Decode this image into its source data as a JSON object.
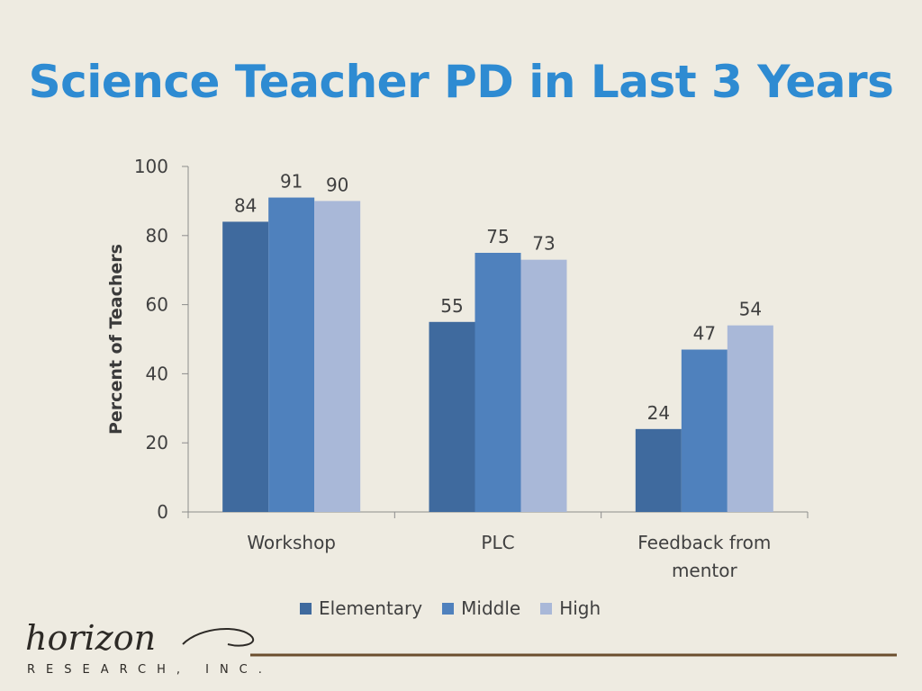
{
  "title": "Science Teacher PD in Last 3 Years",
  "colors": {
    "title": "#2e8bd2",
    "background": "#eeebe1",
    "axis": "#8c8c8c",
    "logo_line": "#6b4e2e"
  },
  "logo": {
    "wordmark": "horizon",
    "subtitle": "RESEARCH, INC."
  },
  "chart_data": {
    "type": "bar",
    "title": "",
    "ylabel": "Percent of Teachers",
    "xlabel": "",
    "ylim": [
      0,
      100
    ],
    "yticks": [
      0,
      20,
      40,
      60,
      80,
      100
    ],
    "grid": false,
    "legend_position": "bottom",
    "categories": [
      "Workshop",
      "PLC",
      "Feedback from mentor"
    ],
    "category_lines": [
      [
        "Workshop"
      ],
      [
        "PLC"
      ],
      [
        "Feedback from",
        "mentor"
      ]
    ],
    "series": [
      {
        "name": "Elementary",
        "values": [
          84,
          55,
          24
        ],
        "color": "#3f6a9e"
      },
      {
        "name": "Middle",
        "values": [
          91,
          75,
          47
        ],
        "color": "#4f81bd"
      },
      {
        "name": "High",
        "values": [
          90,
          73,
          54
        ],
        "color": "#a9b8d8"
      }
    ],
    "data_labels": true
  }
}
